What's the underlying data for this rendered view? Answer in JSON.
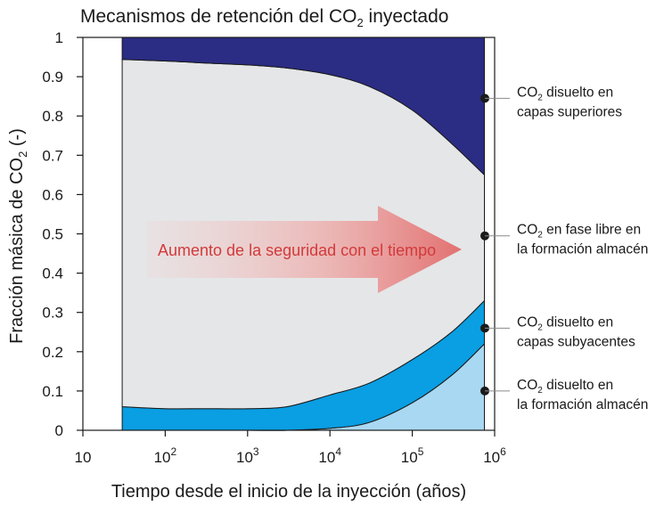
{
  "chart_data": {
    "type": "area",
    "title_main": "Mecanismos de retención del CO",
    "title_sub": "2",
    "title_tail": " inyectado",
    "xlabel": "Tiempo desde el inicio de la inyección (años)",
    "ylabel_main": "Fracción másica de CO",
    "ylabel_sub": "2",
    "ylabel_tail": " (-)",
    "xscale": "log",
    "xlim": [
      10,
      1000000
    ],
    "ylim": [
      0,
      1
    ],
    "x_ticks": [
      {
        "base": "10",
        "exp": ""
      },
      {
        "base": "10",
        "exp": "2"
      },
      {
        "base": "10",
        "exp": "3"
      },
      {
        "base": "10",
        "exp": "4"
      },
      {
        "base": "10",
        "exp": "5"
      },
      {
        "base": "10",
        "exp": "6"
      }
    ],
    "y_ticks": [
      "0",
      "0.1",
      "0.2",
      "0.3",
      "0.4",
      "0.5",
      "0.6",
      "0.7",
      "0.8",
      "0.9",
      "1"
    ],
    "x": [
      30,
      100,
      300,
      1000,
      3000,
      10000,
      30000,
      100000,
      300000,
      750000
    ],
    "series": [
      {
        "values": [
          0.0,
          0.0,
          0.0,
          0.0,
          0.0,
          0.005,
          0.02,
          0.07,
          0.14,
          0.22
        ],
        "color": "#a9d8f2"
      },
      {
        "values": [
          0.06,
          0.055,
          0.055,
          0.055,
          0.06,
          0.09,
          0.12,
          0.18,
          0.25,
          0.33
        ],
        "color": "#0a9ee2"
      },
      {
        "values": [
          0.944,
          0.94,
          0.935,
          0.93,
          0.922,
          0.905,
          0.875,
          0.815,
          0.73,
          0.65
        ],
        "color": "#e5e6e8"
      },
      {
        "values": [
          1,
          1,
          1,
          1,
          1,
          1,
          1,
          1,
          1,
          1
        ],
        "color": "#2b2c83"
      }
    ],
    "annotations": [
      {
        "l1_main": "CO",
        "l1_sub": "2",
        "l1_tail": " disuelto en",
        "line2": "capas superiores",
        "y": 0.845
      },
      {
        "l1_main": "CO",
        "l1_sub": "2",
        "l1_tail": " en fase libre en",
        "line2": "la formación almacén",
        "y": 0.495
      },
      {
        "l1_main": "CO",
        "l1_sub": "2",
        "l1_tail": " disuelto en",
        "line2": "capas subyacentes",
        "y": 0.26
      },
      {
        "l1_main": "CO",
        "l1_sub": "2",
        "l1_tail": " disuelto en",
        "line2": "la formación almacén",
        "y": 0.1
      }
    ],
    "arrow_label": "Aumento de la seguridad con el tiempo",
    "arrow_color": "#e27070",
    "grid": false
  }
}
